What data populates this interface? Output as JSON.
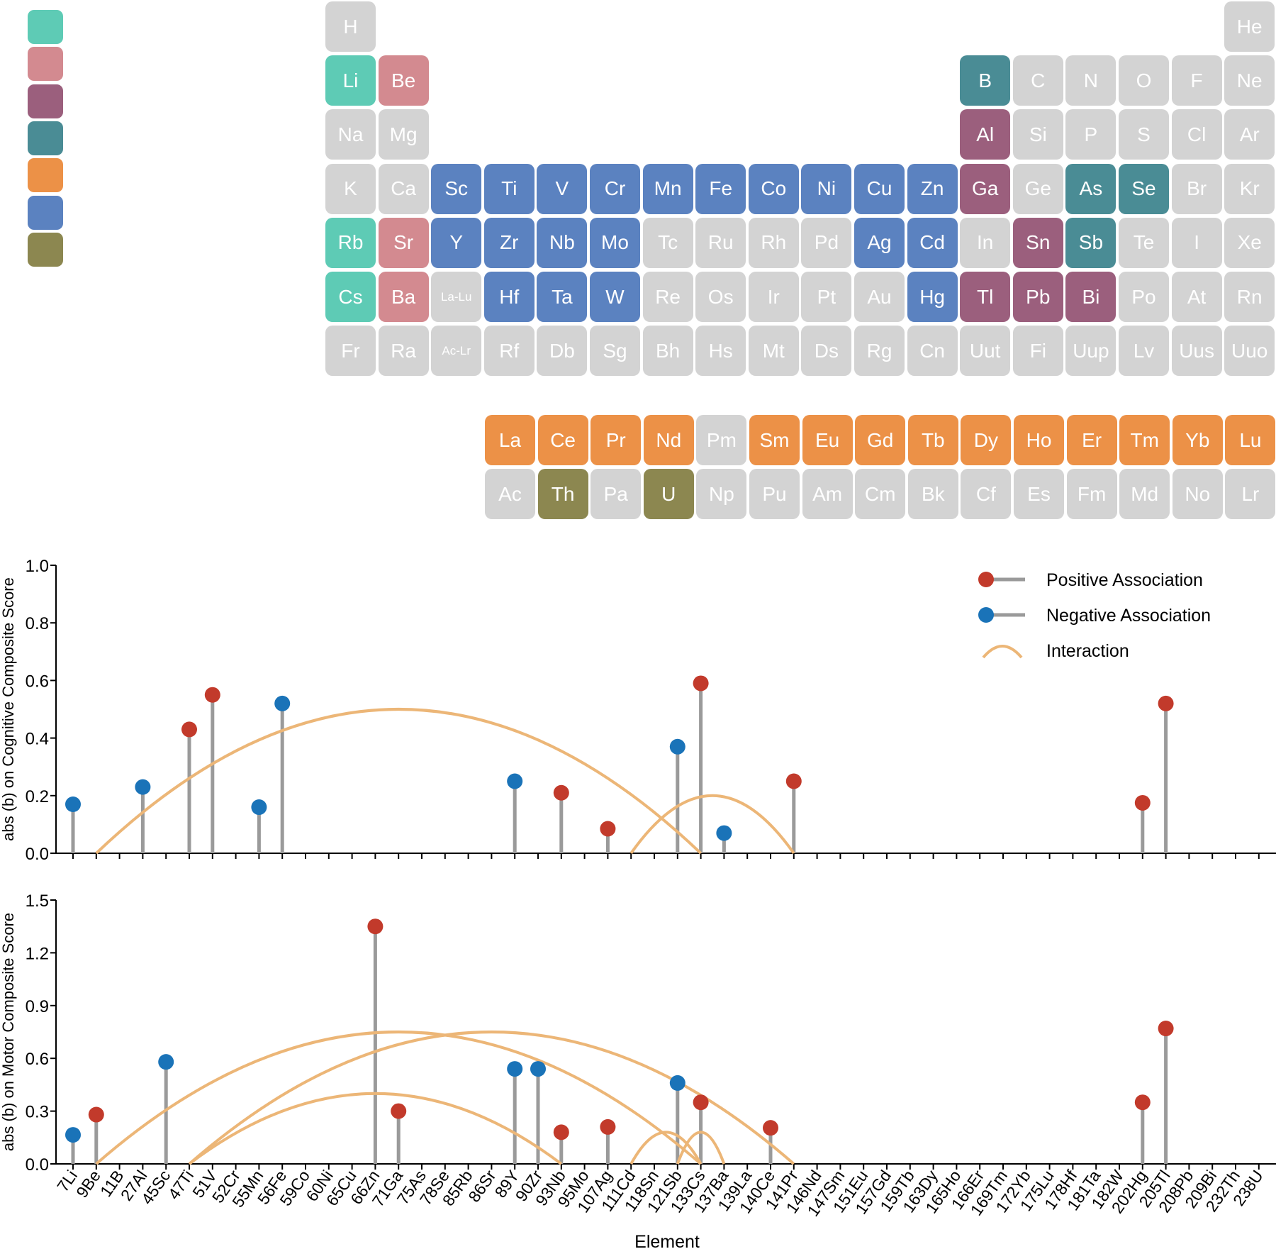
{
  "colors": {
    "alkali": "#5ecbb5",
    "alkaline_earth": "#d38a90",
    "post_transition": "#9b5f7d",
    "metalloid": "#4a8c95",
    "lanthanide": "#ec9147",
    "transition": "#5b82c0",
    "actinide": "#8c8750",
    "none": "#d3d3d3",
    "positive_marker": "#c23a2b",
    "negative_marker": "#1a73b8",
    "stem": "#9a9a9a",
    "interaction": "#ecb677"
  },
  "legend_swatches": [
    "alkali",
    "alkaline_earth",
    "post_transition",
    "metalloid",
    "lanthanide",
    "transition",
    "actinide"
  ],
  "periodic_table": {
    "rows": [
      [
        [
          "H",
          "none"
        ],
        null,
        null,
        null,
        null,
        null,
        null,
        null,
        null,
        null,
        null,
        null,
        null,
        null,
        null,
        null,
        null,
        [
          "He",
          "none"
        ]
      ],
      [
        [
          "Li",
          "alkali"
        ],
        [
          "Be",
          "alkaline_earth"
        ],
        null,
        null,
        null,
        null,
        null,
        null,
        null,
        null,
        null,
        null,
        [
          "B",
          "metalloid"
        ],
        [
          "C",
          "none"
        ],
        [
          "N",
          "none"
        ],
        [
          "O",
          "none"
        ],
        [
          "F",
          "none"
        ],
        [
          "Ne",
          "none"
        ]
      ],
      [
        [
          "Na",
          "none"
        ],
        [
          "Mg",
          "none"
        ],
        null,
        null,
        null,
        null,
        null,
        null,
        null,
        null,
        null,
        null,
        [
          "Al",
          "post_transition"
        ],
        [
          "Si",
          "none"
        ],
        [
          "P",
          "none"
        ],
        [
          "S",
          "none"
        ],
        [
          "Cl",
          "none"
        ],
        [
          "Ar",
          "none"
        ]
      ],
      [
        [
          "K",
          "none"
        ],
        [
          "Ca",
          "none"
        ],
        [
          "Sc",
          "transition"
        ],
        [
          "Ti",
          "transition"
        ],
        [
          "V",
          "transition"
        ],
        [
          "Cr",
          "transition"
        ],
        [
          "Mn",
          "transition"
        ],
        [
          "Fe",
          "transition"
        ],
        [
          "Co",
          "transition"
        ],
        [
          "Ni",
          "transition"
        ],
        [
          "Cu",
          "transition"
        ],
        [
          "Zn",
          "transition"
        ],
        [
          "Ga",
          "post_transition"
        ],
        [
          "Ge",
          "none"
        ],
        [
          "As",
          "metalloid"
        ],
        [
          "Se",
          "metalloid"
        ],
        [
          "Br",
          "none"
        ],
        [
          "Kr",
          "none"
        ]
      ],
      [
        [
          "Rb",
          "alkali"
        ],
        [
          "Sr",
          "alkaline_earth"
        ],
        [
          "Y",
          "transition"
        ],
        [
          "Zr",
          "transition"
        ],
        [
          "Nb",
          "transition"
        ],
        [
          "Mo",
          "transition"
        ],
        [
          "Tc",
          "none"
        ],
        [
          "Ru",
          "none"
        ],
        [
          "Rh",
          "none"
        ],
        [
          "Pd",
          "none"
        ],
        [
          "Ag",
          "transition"
        ],
        [
          "Cd",
          "transition"
        ],
        [
          "In",
          "none"
        ],
        [
          "Sn",
          "post_transition"
        ],
        [
          "Sb",
          "metalloid"
        ],
        [
          "Te",
          "none"
        ],
        [
          "I",
          "none"
        ],
        [
          "Xe",
          "none"
        ]
      ],
      [
        [
          "Cs",
          "alkali"
        ],
        [
          "Ba",
          "alkaline_earth"
        ],
        [
          "La-Lu",
          "none"
        ],
        [
          "Hf",
          "transition"
        ],
        [
          "Ta",
          "transition"
        ],
        [
          "W",
          "transition"
        ],
        [
          "Re",
          "none"
        ],
        [
          "Os",
          "none"
        ],
        [
          "Ir",
          "none"
        ],
        [
          "Pt",
          "none"
        ],
        [
          "Au",
          "none"
        ],
        [
          "Hg",
          "transition"
        ],
        [
          "Tl",
          "post_transition"
        ],
        [
          "Pb",
          "post_transition"
        ],
        [
          "Bi",
          "post_transition"
        ],
        [
          "Po",
          "none"
        ],
        [
          "At",
          "none"
        ],
        [
          "Rn",
          "none"
        ]
      ],
      [
        [
          "Fr",
          "none"
        ],
        [
          "Ra",
          "none"
        ],
        [
          "Ac-Lr",
          "none"
        ],
        [
          "Rf",
          "none"
        ],
        [
          "Db",
          "none"
        ],
        [
          "Sg",
          "none"
        ],
        [
          "Bh",
          "none"
        ],
        [
          "Hs",
          "none"
        ],
        [
          "Mt",
          "none"
        ],
        [
          "Ds",
          "none"
        ],
        [
          "Rg",
          "none"
        ],
        [
          "Cn",
          "none"
        ],
        [
          "Uut",
          "none"
        ],
        [
          "Fi",
          "none"
        ],
        [
          "Uup",
          "none"
        ],
        [
          "Lv",
          "none"
        ],
        [
          "Uus",
          "none"
        ],
        [
          "Uuo",
          "none"
        ]
      ]
    ],
    "lanthanides": [
      [
        "La",
        "lanthanide"
      ],
      [
        "Ce",
        "lanthanide"
      ],
      [
        "Pr",
        "lanthanide"
      ],
      [
        "Nd",
        "lanthanide"
      ],
      [
        "Pm",
        "none"
      ],
      [
        "Sm",
        "lanthanide"
      ],
      [
        "Eu",
        "lanthanide"
      ],
      [
        "Gd",
        "lanthanide"
      ],
      [
        "Tb",
        "lanthanide"
      ],
      [
        "Dy",
        "lanthanide"
      ],
      [
        "Ho",
        "lanthanide"
      ],
      [
        "Er",
        "lanthanide"
      ],
      [
        "Tm",
        "lanthanide"
      ],
      [
        "Yb",
        "lanthanide"
      ],
      [
        "Lu",
        "lanthanide"
      ]
    ],
    "actinides": [
      [
        "Ac",
        "none"
      ],
      [
        "Th",
        "actinide"
      ],
      [
        "Pa",
        "none"
      ],
      [
        "U",
        "actinide"
      ],
      [
        "Np",
        "none"
      ],
      [
        "Pu",
        "none"
      ],
      [
        "Am",
        "none"
      ],
      [
        "Cm",
        "none"
      ],
      [
        "Bk",
        "none"
      ],
      [
        "Cf",
        "none"
      ],
      [
        "Es",
        "none"
      ],
      [
        "Fm",
        "none"
      ],
      [
        "Md",
        "none"
      ],
      [
        "No",
        "none"
      ],
      [
        "Lr",
        "none"
      ]
    ]
  },
  "chart_data": [
    {
      "type": "lollipop",
      "title": "",
      "xlabel": "",
      "ylabel": "abs (b) on Cognitive Composite Score",
      "ylim": [
        0,
        1.0
      ],
      "yticks": [
        "0.0",
        "0.2",
        "0.4",
        "0.6",
        "0.8",
        "1.0"
      ],
      "ytick_values": [
        0,
        0.2,
        0.4,
        0.6,
        0.8,
        1.0
      ],
      "categories": [
        "7Li",
        "9Be",
        "11B",
        "27Al",
        "45Sc",
        "47Ti",
        "51V",
        "52Cr",
        "55Mn",
        "56Fe",
        "59Co",
        "60Ni",
        "65Cu",
        "66Zn",
        "71Ga",
        "75As",
        "78Se",
        "85Rb",
        "86Sr",
        "89Y",
        "90Zr",
        "93Nb",
        "95Mo",
        "107Ag",
        "111Cd",
        "118Sn",
        "121Sb",
        "133Cs",
        "137Ba",
        "139La",
        "140Ce",
        "141Pr",
        "146Nd",
        "147Sm",
        "151Eu",
        "157Gd",
        "159Tb",
        "163Dy",
        "165Ho",
        "166Er",
        "169Tm",
        "172Yb",
        "175Lu",
        "178Hf",
        "181Ta",
        "182W",
        "202Hg",
        "205Tl",
        "208Pb",
        "209Bi",
        "232Th",
        "238U"
      ],
      "points": [
        {
          "element": "7Li",
          "value": 0.17,
          "association": "negative"
        },
        {
          "element": "27Al",
          "value": 0.23,
          "association": "negative"
        },
        {
          "element": "47Ti",
          "value": 0.43,
          "association": "positive"
        },
        {
          "element": "51V",
          "value": 0.55,
          "association": "positive"
        },
        {
          "element": "55Mn",
          "value": 0.16,
          "association": "negative"
        },
        {
          "element": "56Fe",
          "value": 0.52,
          "association": "negative"
        },
        {
          "element": "89Y",
          "value": 0.25,
          "association": "negative"
        },
        {
          "element": "93Nb",
          "value": 0.21,
          "association": "positive"
        },
        {
          "element": "107Ag",
          "value": 0.085,
          "association": "positive"
        },
        {
          "element": "121Sb",
          "value": 0.37,
          "association": "negative"
        },
        {
          "element": "133Cs",
          "value": 0.59,
          "association": "positive"
        },
        {
          "element": "137Ba",
          "value": 0.07,
          "association": "negative"
        },
        {
          "element": "141Pr",
          "value": 0.25,
          "association": "positive"
        },
        {
          "element": "202Hg",
          "value": 0.175,
          "association": "positive"
        },
        {
          "element": "205Tl",
          "value": 0.52,
          "association": "positive"
        }
      ],
      "interactions": [
        {
          "from": "9Be",
          "to": "133Cs",
          "peak": 0.5
        },
        {
          "from": "111Cd",
          "to": "141Pr",
          "peak": 0.2
        }
      ],
      "legend": [
        {
          "label": "Positive Association",
          "kind": "positive"
        },
        {
          "label": "Negative Association",
          "kind": "negative"
        },
        {
          "label": "Interaction",
          "kind": "interaction"
        }
      ]
    },
    {
      "type": "lollipop",
      "title": "",
      "xlabel": "Element",
      "ylabel": "abs (b) on Motor Composite Score",
      "ylim": [
        0,
        1.5
      ],
      "yticks": [
        "0.0",
        "0.3",
        "0.6",
        "0.9",
        "1.2",
        "1.5"
      ],
      "ytick_values": [
        0,
        0.3,
        0.6,
        0.9,
        1.2,
        1.5
      ],
      "categories": [
        "7Li",
        "9Be",
        "11B",
        "27Al",
        "45Sc",
        "47Ti",
        "51V",
        "52Cr",
        "55Mn",
        "56Fe",
        "59Co",
        "60Ni",
        "65Cu",
        "66Zn",
        "71Ga",
        "75As",
        "78Se",
        "85Rb",
        "86Sr",
        "89Y",
        "90Zr",
        "93Nb",
        "95Mo",
        "107Ag",
        "111Cd",
        "118Sn",
        "121Sb",
        "133Cs",
        "137Ba",
        "139La",
        "140Ce",
        "141Pr",
        "146Nd",
        "147Sm",
        "151Eu",
        "157Gd",
        "159Tb",
        "163Dy",
        "165Ho",
        "166Er",
        "169Tm",
        "172Yb",
        "175Lu",
        "178Hf",
        "181Ta",
        "182W",
        "202Hg",
        "205Tl",
        "208Pb",
        "209Bi",
        "232Th",
        "238U"
      ],
      "points": [
        {
          "element": "7Li",
          "value": 0.165,
          "association": "negative"
        },
        {
          "element": "9Be",
          "value": 0.28,
          "association": "positive"
        },
        {
          "element": "45Sc",
          "value": 0.58,
          "association": "negative"
        },
        {
          "element": "66Zn",
          "value": 1.35,
          "association": "positive"
        },
        {
          "element": "71Ga",
          "value": 0.3,
          "association": "positive"
        },
        {
          "element": "89Y",
          "value": 0.54,
          "association": "negative"
        },
        {
          "element": "90Zr",
          "value": 0.54,
          "association": "negative"
        },
        {
          "element": "93Nb",
          "value": 0.18,
          "association": "positive"
        },
        {
          "element": "107Ag",
          "value": 0.21,
          "association": "positive"
        },
        {
          "element": "121Sb",
          "value": 0.46,
          "association": "negative"
        },
        {
          "element": "133Cs",
          "value": 0.35,
          "association": "positive"
        },
        {
          "element": "140Ce",
          "value": 0.205,
          "association": "positive"
        },
        {
          "element": "202Hg",
          "value": 0.35,
          "association": "positive"
        },
        {
          "element": "205Tl",
          "value": 0.77,
          "association": "positive"
        }
      ],
      "interactions": [
        {
          "from": "9Be",
          "to": "133Cs",
          "peak": 0.75
        },
        {
          "from": "47Ti",
          "to": "141Pr",
          "peak": 0.75
        },
        {
          "from": "47Ti",
          "to": "93Nb",
          "peak": 0.4
        },
        {
          "from": "111Cd",
          "to": "133Cs",
          "peak": 0.18
        },
        {
          "from": "121Sb",
          "to": "137Ba",
          "peak": 0.18
        }
      ]
    }
  ]
}
